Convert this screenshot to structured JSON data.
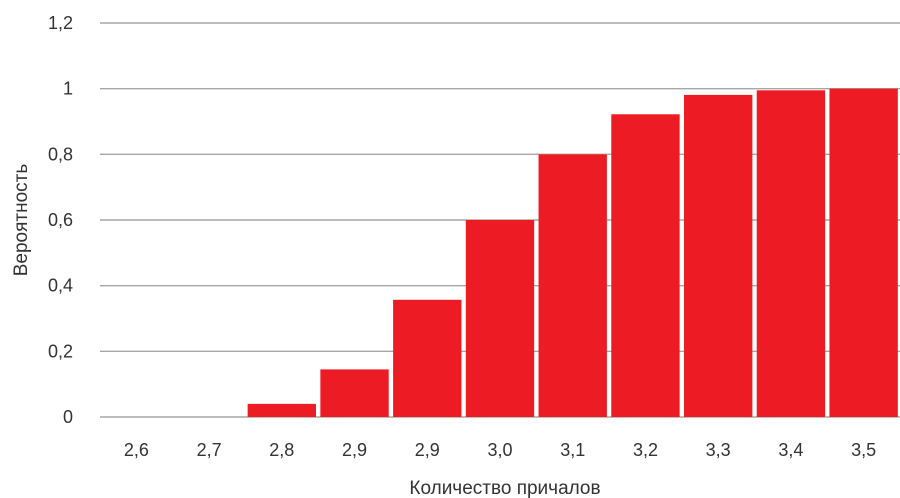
{
  "chart_data": {
    "type": "bar",
    "categories": [
      "2,6",
      "2,7",
      "2,8",
      "2,9",
      "2,9",
      "3,0",
      "3,1",
      "3,2",
      "3,3",
      "3,4",
      "3,5"
    ],
    "values": [
      0,
      0,
      0.04,
      0.145,
      0.357,
      0.6,
      0.8,
      0.922,
      0.981,
      0.995,
      1.0
    ],
    "xlabel": "Количество причалов",
    "ylabel": "Вероятность",
    "ylim": [
      0,
      1.2
    ],
    "yticks": [
      0,
      0.2,
      0.4,
      0.6,
      0.8,
      1,
      1.2
    ],
    "ytick_labels": [
      "0",
      "0,2",
      "0,4",
      "0,6",
      "0,8",
      "1",
      "1,2"
    ],
    "grid": true,
    "legend": "none",
    "colors": {
      "bar": "#ED1C24",
      "grid": "#A6A6A6",
      "text": "#333333"
    }
  }
}
